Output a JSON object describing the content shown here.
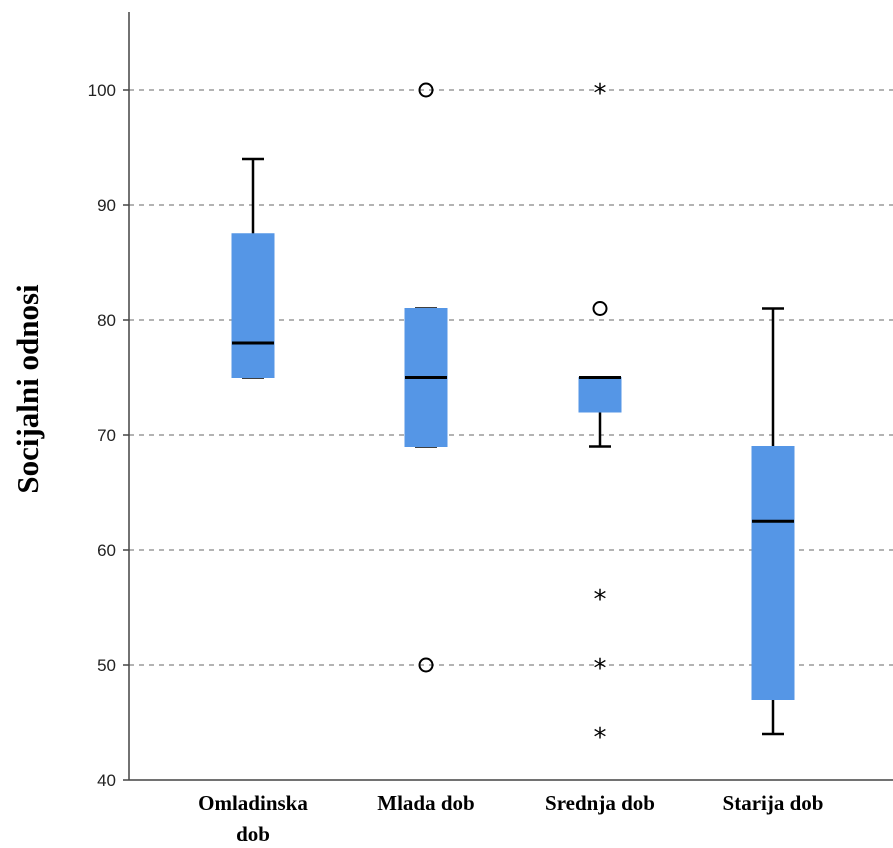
{
  "chart_data": {
    "type": "box",
    "ylabel": "Socijalni odnosi",
    "xlabel": "",
    "ylim": [
      40,
      107
    ],
    "yticks": [
      40,
      50,
      60,
      70,
      80,
      90,
      100
    ],
    "grid": true,
    "box_color": "#5596e6",
    "categories": [
      {
        "label_lines": [
          "Omladinska",
          "dob"
        ],
        "min": 75,
        "q1": 75,
        "median": 78,
        "q3": 87.5,
        "max": 94,
        "outliers": [],
        "extremes": []
      },
      {
        "label_lines": [
          "Mlada dob"
        ],
        "min": 69,
        "q1": 69,
        "median": 75,
        "q3": 81,
        "max": 81,
        "outliers": [
          100,
          50
        ],
        "extremes": []
      },
      {
        "label_lines": [
          "Srednja dob"
        ],
        "min": 69,
        "q1": 72,
        "median": 75,
        "q3": 75,
        "max": 75,
        "outliers": [
          81
        ],
        "extremes": [
          100,
          56,
          50,
          44
        ]
      },
      {
        "label_lines": [
          "Starija dob"
        ],
        "min": 44,
        "q1": 47,
        "median": 62.5,
        "q3": 69,
        "max": 81,
        "outliers": [],
        "extremes": []
      }
    ]
  }
}
